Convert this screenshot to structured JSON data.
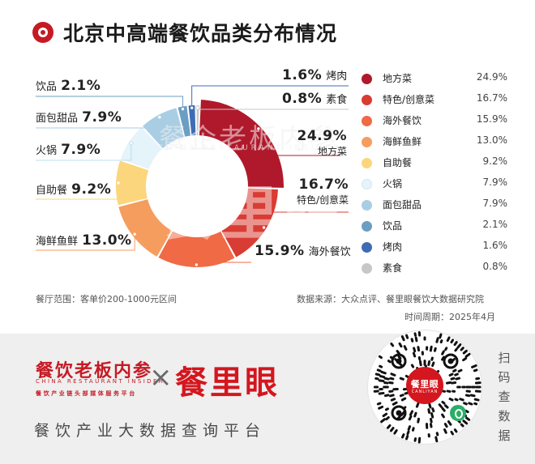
{
  "header": {
    "title": "北京中高端餐饮品类分布情况"
  },
  "chart_data": {
    "type": "pie",
    "categories": [
      "地方菜",
      "特色/创意菜",
      "海外餐饮",
      "海鲜鱼鲜",
      "自助餐",
      "火锅",
      "面包甜品",
      "饮品",
      "烤肉",
      "素食"
    ],
    "values": [
      24.9,
      16.7,
      15.9,
      13.0,
      9.2,
      7.9,
      7.9,
      2.1,
      1.6,
      0.8
    ],
    "labels": [
      "24.9%",
      "16.7%",
      "15.9%",
      "13.0%",
      "9.2%",
      "7.9%",
      "7.9%",
      "2.1%",
      "1.6%",
      "0.8%"
    ],
    "colors": [
      "#b0192b",
      "#d93c33",
      "#ef6a45",
      "#f59d5e",
      "#fbd67c",
      "#e5f3fb",
      "#a9cee4",
      "#6b9ec2",
      "#3e6cb4",
      "#c7c7c7"
    ],
    "legend_position": "right"
  },
  "footer": {
    "scope": "餐厅范围：客单价200-1000元区间",
    "source": "数据来源：大众点评、餐里眼餐饮大数据研究院",
    "period": "时间周期：2025年4月"
  },
  "watermark": {
    "cn": "餐企老板内参",
    "en": "CHINA RESTAURANT INSIDER",
    "big": "餐里眼"
  },
  "brand": {
    "name_a": "餐饮老板内参",
    "name_a_en": "CHINA RESTAURANT INSIDER",
    "name_a_slogan": "餐饮产业链头部媒体服务平台",
    "times": "×",
    "name_b": "餐里眼",
    "tagline": "餐饮产业大数据查询平台",
    "qr_title": "餐里眼",
    "qr_sub": "CANLIYAN",
    "scan_hint": "扫码查数据"
  }
}
